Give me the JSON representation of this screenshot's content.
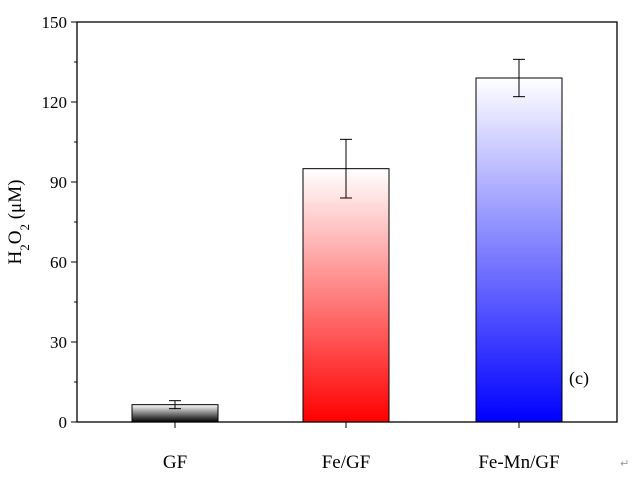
{
  "chart_data": {
    "type": "bar",
    "categories": [
      "GF",
      "Fe/GF",
      "Fe-Mn/GF"
    ],
    "values": [
      6.5,
      95,
      129
    ],
    "errors": [
      1.5,
      11,
      7
    ],
    "ylabel": {
      "parts": [
        {
          "text": "H",
          "sub": false
        },
        {
          "text": "2",
          "sub": true
        },
        {
          "text": "O",
          "sub": false
        },
        {
          "text": "2",
          "sub": true
        },
        {
          "text": " (μM)",
          "sub": false
        }
      ]
    },
    "xlabel": "",
    "ylim": [
      0,
      150
    ],
    "yticks": [
      0,
      30,
      60,
      90,
      120,
      150
    ],
    "bar_colors": [
      "#000000",
      "#ff0000",
      "#0000ff"
    ],
    "panel_label": "(c)",
    "grid": false,
    "legend": "none"
  },
  "page_mark": "↵"
}
